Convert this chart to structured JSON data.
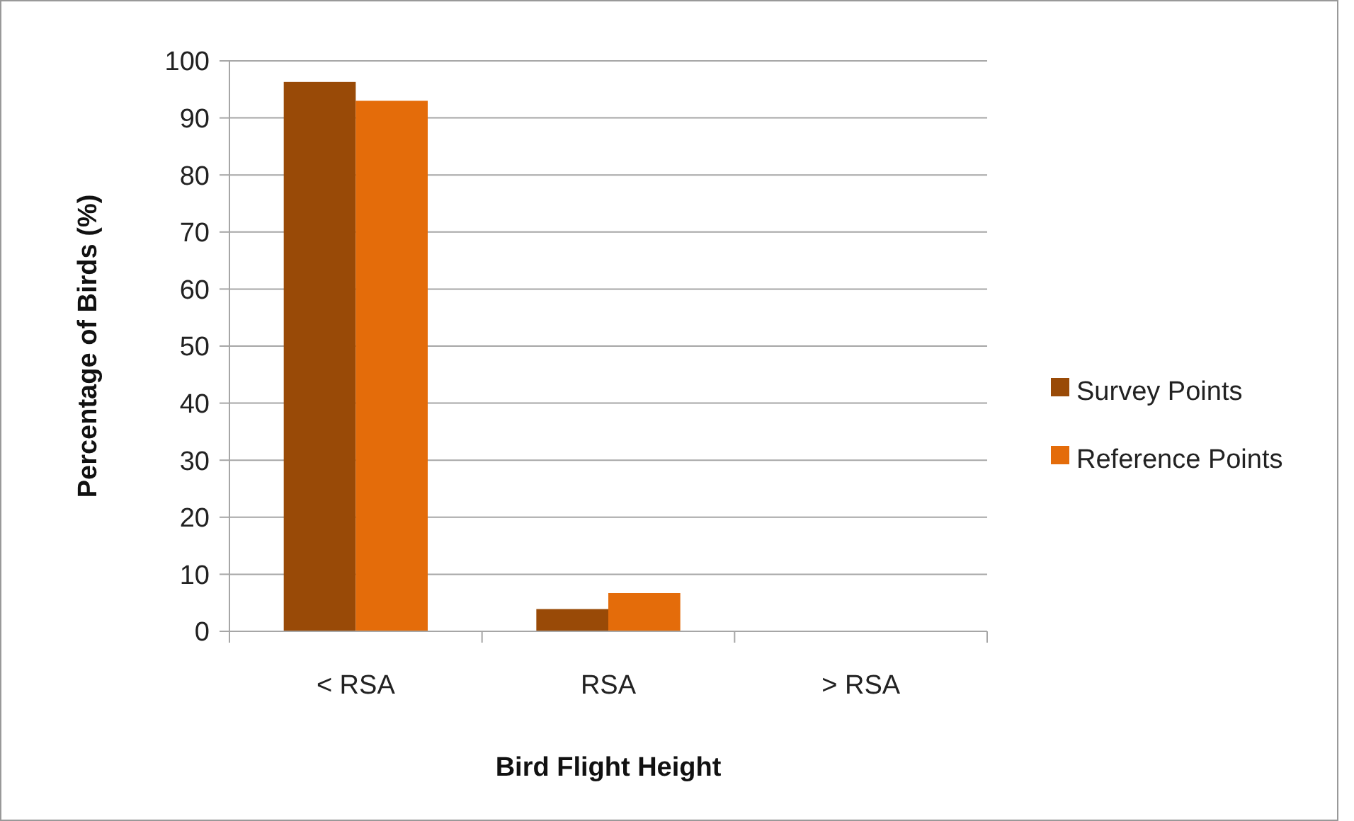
{
  "chart_data": {
    "type": "bar",
    "xlabel": "Bird Flight Height",
    "ylabel": "Percentage of Birds (%)",
    "categories": [
      "< RSA",
      "RSA",
      "> RSA"
    ],
    "series": [
      {
        "name": "Survey Points",
        "color": "#994a07",
        "values": [
          96.3,
          3.9,
          0
        ]
      },
      {
        "name": "Reference Points",
        "color": "#e46c0a",
        "values": [
          93.0,
          6.7,
          0
        ]
      }
    ],
    "ylim": [
      0,
      100
    ],
    "yticks": [
      0,
      10,
      20,
      30,
      40,
      50,
      60,
      70,
      80,
      90,
      100
    ],
    "grid": "y",
    "legend": "right"
  }
}
